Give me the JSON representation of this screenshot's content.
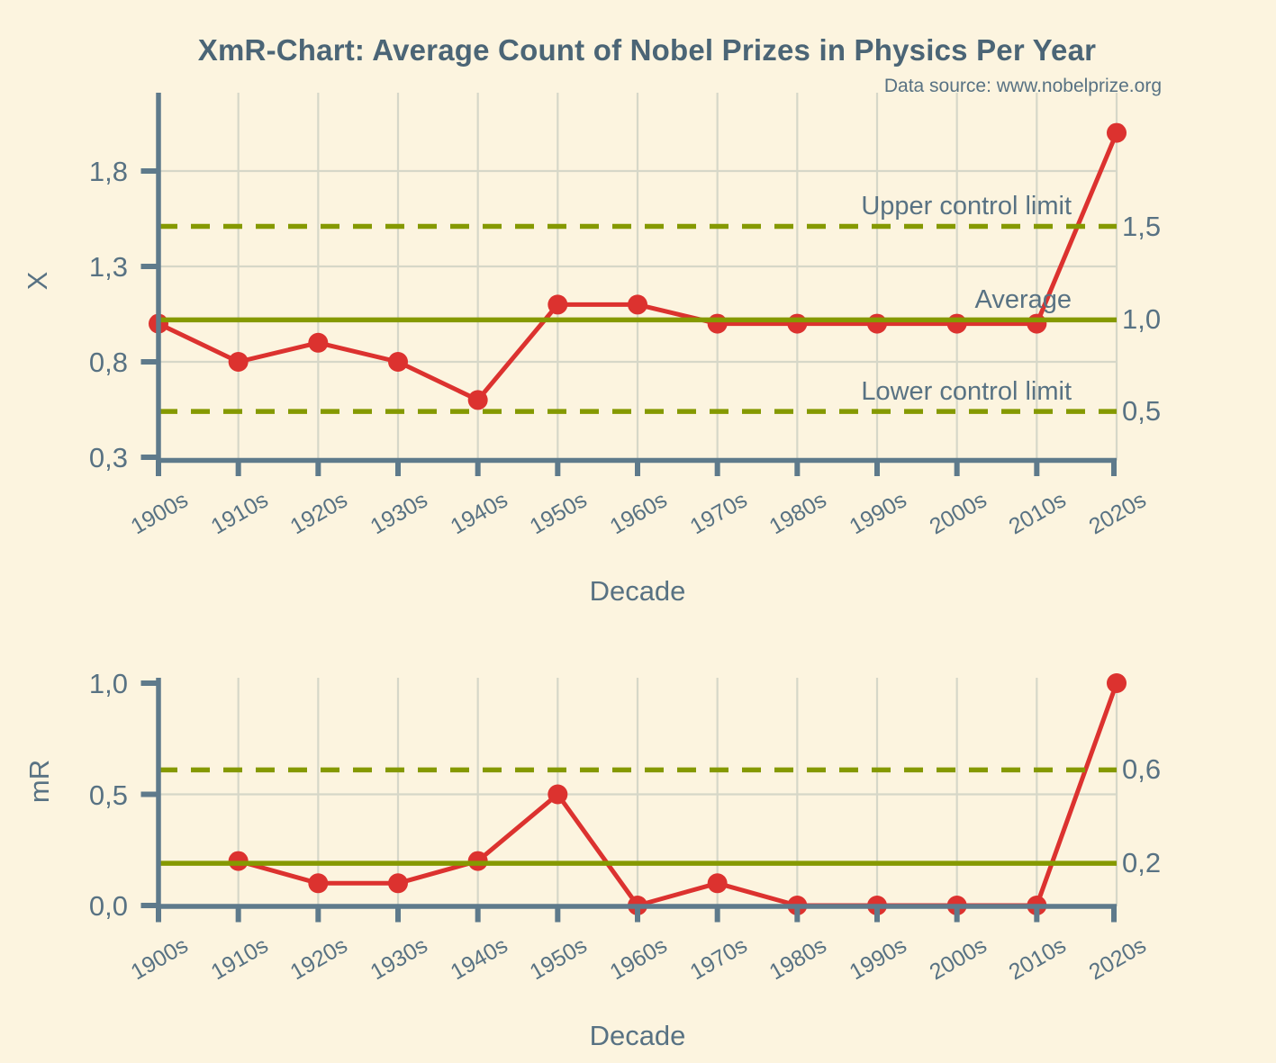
{
  "page": {
    "title": "XmR-Chart: Average Count of Nobel Prizes in Physics Per Year",
    "source": "Data source: www.nobelprize.org"
  },
  "colors": {
    "background": "#fcf4df",
    "title_text": "#4b6576",
    "label_text": "#587283",
    "axis": "#5e7a8b",
    "grid": "#d6d7c8",
    "control_line": "#859900",
    "series": "#dc322f"
  },
  "chart_data": [
    {
      "id": "x-chart",
      "type": "line",
      "title": "X chart (individual values)",
      "xlabel": "Decade",
      "ylabel": "X",
      "categories": [
        "1900s",
        "1910s",
        "1920s",
        "1930s",
        "1940s",
        "1950s",
        "1960s",
        "1970s",
        "1980s",
        "1990s",
        "2000s",
        "2010s",
        "2020s"
      ],
      "values": [
        1.0,
        0.8,
        0.9,
        0.8,
        0.6,
        1.1,
        1.1,
        1.0,
        1.0,
        1.0,
        1.0,
        1.0,
        2.0
      ],
      "yticks": {
        "values": [
          0.3,
          0.8,
          1.3,
          1.8
        ],
        "labels": [
          "0,3",
          "0,8",
          "1,3",
          "1,8"
        ]
      },
      "ylim": [
        0.28,
        2.21
      ],
      "grid": "on",
      "legend": "none",
      "lines": {
        "ucl": {
          "value": 1.51,
          "label": "Upper control limit",
          "value_label": "1,5",
          "style": "dashed"
        },
        "average": {
          "value": 1.02,
          "label": "Average",
          "value_label": "1,0",
          "style": "solid"
        },
        "lcl": {
          "value": 0.54,
          "label": "Lower control limit",
          "value_label": "0,5",
          "style": "dashed"
        }
      }
    },
    {
      "id": "mr-chart",
      "type": "line",
      "title": "mR chart (moving range)",
      "xlabel": "Decade",
      "ylabel": "mR",
      "categories": [
        "1900s",
        "1910s",
        "1920s",
        "1930s",
        "1940s",
        "1950s",
        "1960s",
        "1970s",
        "1980s",
        "1990s",
        "2000s",
        "2010s",
        "2020s"
      ],
      "values": [
        null,
        0.2,
        0.1,
        0.1,
        0.2,
        0.5,
        0.0,
        0.1,
        0.0,
        0.0,
        0.0,
        0.0,
        1.0
      ],
      "yticks": {
        "values": [
          0.0,
          0.5,
          1.0
        ],
        "labels": [
          "0,0",
          "0,5",
          "1,0"
        ]
      },
      "ylim": [
        0.0,
        1.0
      ],
      "grid": "on",
      "legend": "none",
      "lines": {
        "ucl": {
          "value": 0.61,
          "label": "",
          "value_label": "0,6",
          "style": "dashed"
        },
        "average": {
          "value": 0.19,
          "label": "",
          "value_label": "0,2",
          "style": "solid"
        }
      }
    }
  ]
}
